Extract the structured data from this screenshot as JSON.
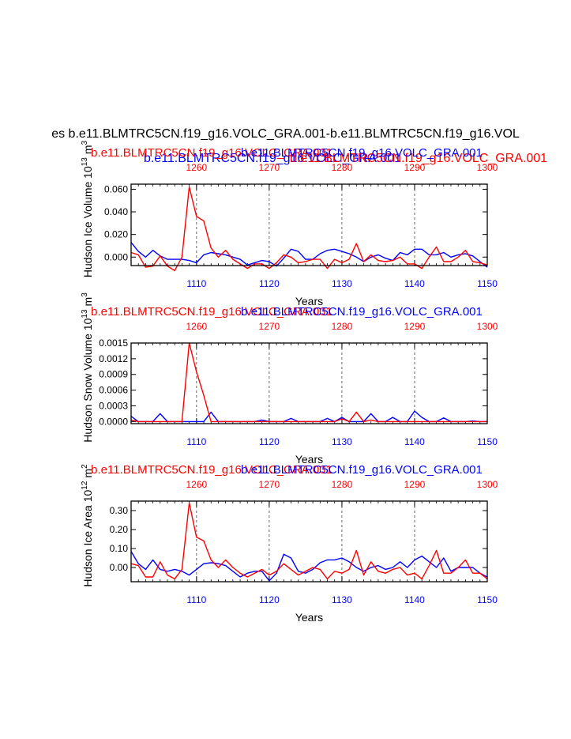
{
  "figure": {
    "main_title": "es b.e11.BLMTRC5CN.f19_g16.VOLC_GRA.001-b.e11.BLMTRC5CN.f19_g16.VOL",
    "top_overlay_blue": "b.e11.BLMTRC5CN.f19_g16.VOLC_GRA.001",
    "top_overlay_red": "b.e11.BLMTRC5CN.f19_g16.VOLC_GRA.001",
    "series_colors": {
      "red": "#ff0000",
      "blue": "#0000ff"
    }
  },
  "chart_data": [
    {
      "type": "line",
      "top_labels": {
        "red": "b.e11.BLMTRC5CN.f19_g16.VOLC_GRA.001",
        "blue": "b.e11.BLMTRC5CN.f19_g16.VOLC_GRA.001"
      },
      "ylabel": "Hudson Ice Volume 10",
      "ylabel_exp": "13",
      "ylabel_unit": "m",
      "ylabel_unit_exp": "3",
      "xlabel": "Years",
      "ylim": [
        -0.0075,
        0.0645
      ],
      "yticks": [
        0.0,
        0.02,
        0.04,
        0.06
      ],
      "ytick_labels": [
        "0.000",
        "0.020",
        "0.040",
        "0.060"
      ],
      "bottom_axis": {
        "range": [
          1101,
          1150
        ],
        "ticks": [
          1110,
          1120,
          1130,
          1140,
          1150
        ],
        "labels": [
          "1110",
          "1120",
          "1130",
          "1140",
          "1150"
        ]
      },
      "top_axis": {
        "range": [
          1251,
          1300
        ],
        "ticks": [
          1260,
          1270,
          1280,
          1290,
          1300
        ],
        "labels": [
          "1260",
          "1270",
          "1280",
          "1290",
          "1300"
        ]
      },
      "series": [
        {
          "color": "blue",
          "axis": "bottom",
          "x_start": 1101,
          "values": [
            0.013,
            0.005,
            0.0,
            0.006,
            0.001,
            -0.002,
            -0.002,
            -0.002,
            -0.003,
            -0.005,
            0.002,
            0.004,
            0.003,
            0.002,
            0.0,
            -0.002,
            -0.007,
            -0.005,
            -0.003,
            -0.004,
            -0.008,
            -0.001,
            0.007,
            0.005,
            -0.002,
            -0.002,
            0.003,
            0.006,
            0.007,
            0.005,
            0.003,
            0.0,
            -0.004,
            0.0,
            0.002,
            -0.001,
            -0.003,
            0.004,
            0.002,
            0.007,
            0.007,
            0.002,
            0.002,
            0.004,
            0.0,
            0.002,
            0.003,
            0.001,
            -0.004,
            -0.009
          ]
        },
        {
          "color": "red",
          "axis": "top",
          "x_start": 1251,
          "values": [
            0.004,
            0.002,
            -0.009,
            -0.008,
            0.001,
            -0.008,
            -0.012,
            0.0,
            0.062,
            0.036,
            0.032,
            0.008,
            0.0,
            0.006,
            -0.002,
            -0.006,
            -0.01,
            -0.006,
            -0.006,
            -0.01,
            -0.005,
            0.002,
            0.0,
            -0.005,
            -0.004,
            -0.002,
            -0.002,
            -0.01,
            -0.002,
            -0.005,
            -0.002,
            0.012,
            -0.004,
            0.002,
            -0.003,
            -0.004,
            -0.003,
            0.0,
            -0.006,
            -0.006,
            -0.01,
            0.0,
            0.009,
            -0.004,
            -0.004,
            0.0,
            0.006,
            -0.004,
            -0.005,
            -0.007
          ]
        }
      ]
    },
    {
      "type": "line",
      "top_labels": {
        "red": "b.e11.BLMTRC5CN.f19_g16.VOLC_GRA.001",
        "blue": "b.e11.BLMTRC5CN.f19_g16.VOLC_GRA.001"
      },
      "ylabel": "Hudson Snow Volume 10",
      "ylabel_exp": "13",
      "ylabel_unit": "m",
      "ylabel_unit_exp": "3",
      "xlabel": "Years",
      "ylim": [
        -4e-05,
        0.0015
      ],
      "yticks": [
        0.0,
        0.0003,
        0.0006,
        0.0009,
        0.0012,
        0.0015
      ],
      "ytick_labels": [
        "0.0000",
        "0.0003",
        "0.0006",
        "0.0009",
        "0.0012",
        "0.0015"
      ],
      "bottom_axis": {
        "range": [
          1101,
          1150
        ],
        "ticks": [
          1110,
          1120,
          1130,
          1140,
          1150
        ],
        "labels": [
          "1110",
          "1120",
          "1130",
          "1140",
          "1150"
        ]
      },
      "top_axis": {
        "range": [
          1251,
          1300
        ],
        "ticks": [
          1260,
          1270,
          1280,
          1290,
          1300
        ],
        "labels": [
          "1260",
          "1270",
          "1280",
          "1290",
          "1300"
        ]
      },
      "series": [
        {
          "color": "blue",
          "axis": "bottom",
          "x_start": 1101,
          "values": [
            0.0001,
            0.0,
            0.0,
            0.0,
            0.00015,
            0.0,
            0.0,
            0.0,
            0.0,
            0.0,
            0.0,
            0.00018,
            0.0,
            0.0,
            0.0,
            0.0,
            0.0,
            0.0,
            3e-05,
            0.0,
            0.0,
            0.0,
            6e-05,
            0.0,
            0.0,
            0.0,
            0.0,
            6e-05,
            0.0,
            8e-05,
            0.0,
            0.0,
            0.0,
            0.00015,
            0.0,
            0.0,
            8e-05,
            0.0,
            0.0,
            0.0002,
            8e-05,
            0.0,
            0.0,
            7e-05,
            0.0,
            0.0,
            0.0,
            1e-05,
            0.0,
            0.0
          ]
        },
        {
          "color": "red",
          "axis": "top",
          "x_start": 1251,
          "values": [
            3e-05,
            0.0,
            0.0,
            0.0,
            0.0,
            0.0,
            0.0,
            0.0,
            0.0015,
            0.00095,
            0.0005,
            0.0,
            0.0,
            0.0,
            0.0,
            0.0,
            0.0,
            0.0,
            0.0,
            0.0,
            0.0,
            0.0,
            0.0,
            0.0,
            0.0,
            0.0,
            0.0,
            0.0,
            0.0,
            5e-05,
            0.0,
            0.00018,
            0.0,
            3e-05,
            0.0,
            0.0,
            0.0,
            0.0,
            0.0,
            0.0,
            0.0,
            0.0,
            0.0,
            0.0,
            0.0,
            0.0,
            0.0,
            0.0,
            0.0,
            0.0
          ]
        }
      ]
    },
    {
      "type": "line",
      "top_labels": {
        "red": "b.e11.BLMTRC5CN.f19_g16.VOLC_GRA.001",
        "blue": "b.e11.BLMTRC5CN.f19_g16.VOLC_GRA.001"
      },
      "ylabel": "Hudson Ice Area 10",
      "ylabel_exp": "12",
      "ylabel_unit": "m",
      "ylabel_unit_exp": "2",
      "xlabel": "Years",
      "ylim": [
        -0.075,
        0.35
      ],
      "yticks": [
        0.0,
        0.1,
        0.2,
        0.3
      ],
      "ytick_labels": [
        "0.00",
        "0.10",
        "0.20",
        "0.30"
      ],
      "bottom_axis": {
        "range": [
          1101,
          1150
        ],
        "ticks": [
          1110,
          1120,
          1130,
          1140,
          1150
        ],
        "labels": [
          "1110",
          "1120",
          "1130",
          "1140",
          "1150"
        ]
      },
      "top_axis": {
        "range": [
          1251,
          1300
        ],
        "ticks": [
          1260,
          1270,
          1280,
          1290,
          1300
        ],
        "labels": [
          "1260",
          "1270",
          "1280",
          "1290",
          "1300"
        ]
      },
      "series": [
        {
          "color": "blue",
          "axis": "bottom",
          "x_start": 1101,
          "values": [
            0.085,
            0.02,
            -0.01,
            0.04,
            -0.01,
            -0.02,
            -0.01,
            -0.02,
            -0.04,
            -0.01,
            0.02,
            0.025,
            0.02,
            0.01,
            -0.02,
            -0.05,
            -0.03,
            -0.02,
            -0.02,
            -0.07,
            -0.03,
            0.07,
            0.05,
            -0.02,
            -0.03,
            -0.01,
            0.025,
            0.04,
            0.04,
            0.05,
            0.03,
            0.0,
            -0.02,
            0.0,
            0.01,
            -0.01,
            0.0,
            0.03,
            0.0,
            0.04,
            0.06,
            0.03,
            0.0,
            0.05,
            -0.02,
            0.0,
            0.0,
            0.0,
            -0.03,
            -0.05
          ]
        },
        {
          "color": "red",
          "axis": "top",
          "x_start": 1251,
          "values": [
            0.02,
            0.01,
            -0.05,
            -0.05,
            0.03,
            -0.04,
            -0.06,
            -0.01,
            0.34,
            0.16,
            0.14,
            0.04,
            0.0,
            0.04,
            0.0,
            -0.03,
            -0.05,
            -0.03,
            -0.01,
            -0.04,
            -0.02,
            0.02,
            -0.01,
            -0.04,
            -0.02,
            0.0,
            -0.01,
            -0.06,
            -0.02,
            -0.03,
            -0.01,
            0.09,
            -0.04,
            0.03,
            -0.02,
            -0.03,
            -0.01,
            0.0,
            -0.04,
            -0.03,
            -0.06,
            0.01,
            0.09,
            -0.03,
            -0.03,
            0.0,
            0.04,
            -0.03,
            -0.03,
            -0.06
          ]
        }
      ]
    }
  ]
}
